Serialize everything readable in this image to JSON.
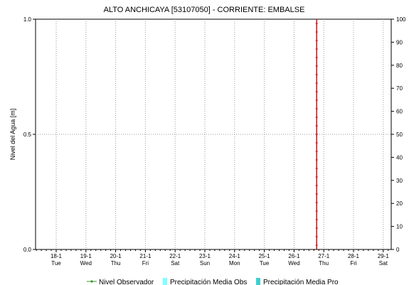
{
  "chart_data": {
    "type": "line",
    "title": "ALTO ANCHICAYA [53107050] - CORRIENTE: EMBALSE",
    "ylabel": "Nivel del Agua [m]",
    "y2label": "",
    "ylim": [
      0.0,
      1.0
    ],
    "y2lim": [
      0,
      100
    ],
    "y_ticks": [
      "0.0",
      "0.5",
      "1.0"
    ],
    "y2_ticks": [
      "0",
      "10",
      "20",
      "30",
      "40",
      "50",
      "60",
      "70",
      "80",
      "90",
      "100"
    ],
    "x_ticks": [
      {
        "date": "18-1",
        "day": "Tue"
      },
      {
        "date": "19-1",
        "day": "Wed"
      },
      {
        "date": "20-1",
        "day": "Thu"
      },
      {
        "date": "21-1",
        "day": "Fri"
      },
      {
        "date": "22-1",
        "day": "Sat"
      },
      {
        "date": "23-1",
        "day": "Sun"
      },
      {
        "date": "24-1",
        "day": "Mon"
      },
      {
        "date": "25-1",
        "day": "Tue"
      },
      {
        "date": "26-1",
        "day": "Wed"
      },
      {
        "date": "27-1",
        "day": "Thu"
      },
      {
        "date": "28-1",
        "day": "Fri"
      },
      {
        "date": "29-1",
        "day": "Sat"
      }
    ],
    "current_time_marker": "27-1",
    "grid": true,
    "legend_position": "bottom",
    "series": [
      {
        "name": "Nivel Observador",
        "values": [],
        "color": "#3a9a2a"
      },
      {
        "name": "Precipitación Media Obs",
        "values": [],
        "color": "#7fffff"
      },
      {
        "name": "Precipitación Media Pro",
        "values": [],
        "color": "#3fcfcf"
      }
    ],
    "marker_color": "#cc0000"
  }
}
